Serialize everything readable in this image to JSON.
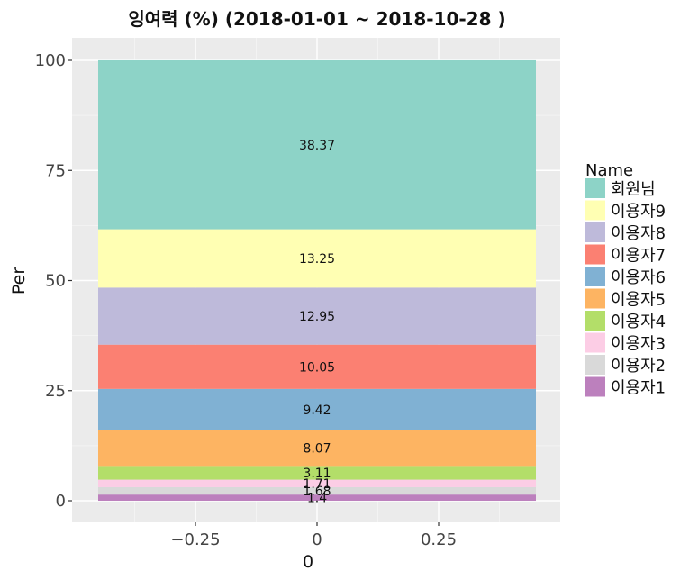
{
  "chart_data": {
    "type": "bar",
    "stacked": true,
    "title": "잉여력 (%) (2018-01-01  ~ 2018-10-28 )",
    "xlabel": "0",
    "ylabel": "Per",
    "x_ticks": [
      "−0.25",
      "0",
      "0.25"
    ],
    "y_ticks": [
      "0",
      "25",
      "50",
      "75",
      "100"
    ],
    "ylim": [
      0,
      100
    ],
    "grid": true,
    "legend": {
      "title": "Name",
      "placement": "right"
    },
    "series": [
      {
        "name": "이용자1",
        "value": 1.4,
        "label": "1.4",
        "color": "#BC80BD"
      },
      {
        "name": "이용자2",
        "value": 1.68,
        "label": "1.68",
        "color": "#D9D9D9"
      },
      {
        "name": "이용자3",
        "value": 1.71,
        "label": "1.71",
        "color": "#FCCDE5"
      },
      {
        "name": "이용자4",
        "value": 3.11,
        "label": "3.11",
        "color": "#B3DE69"
      },
      {
        "name": "이용자5",
        "value": 8.07,
        "label": "8.07",
        "color": "#FDB462"
      },
      {
        "name": "이용자6",
        "value": 9.42,
        "label": "9.42",
        "color": "#80B1D3"
      },
      {
        "name": "이용자7",
        "value": 10.05,
        "label": "10.05",
        "color": "#FB8072"
      },
      {
        "name": "이용자8",
        "value": 12.95,
        "label": "12.95",
        "color": "#BEBADA"
      },
      {
        "name": "이용자9",
        "value": 13.25,
        "label": "13.25",
        "color": "#FFFFB3"
      },
      {
        "name": "회원님",
        "value": 38.37,
        "label": "38.37",
        "color": "#8DD3C7"
      }
    ]
  }
}
